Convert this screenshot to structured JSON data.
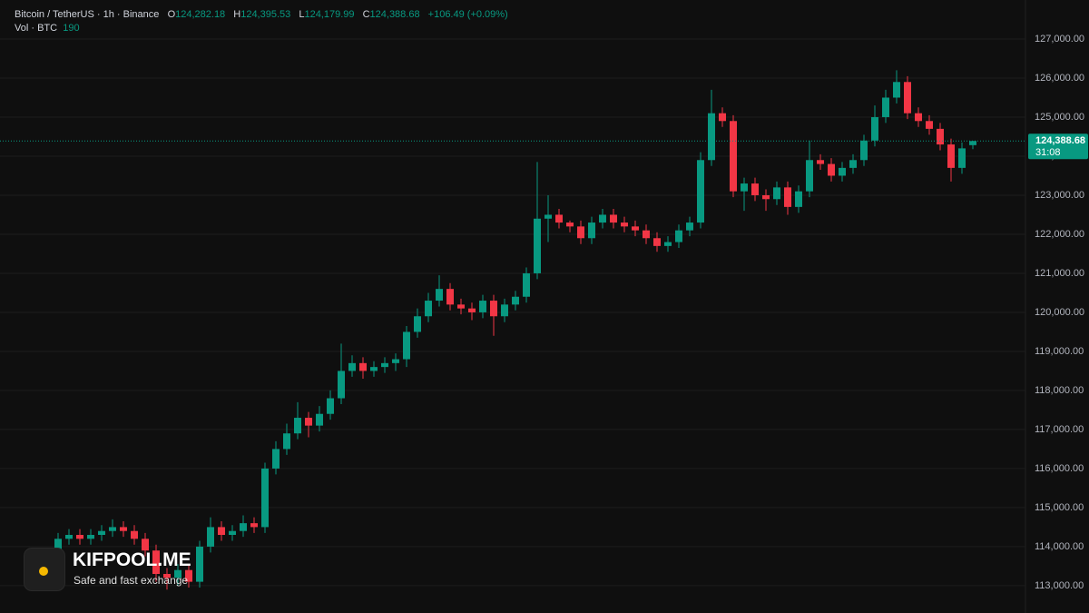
{
  "header": {
    "symbol": "Bitcoin / TetherUS · 1h · Binance",
    "ohlc": [
      {
        "label": "O",
        "value": "124,282.18"
      },
      {
        "label": "H",
        "value": "124,395.53"
      },
      {
        "label": "L",
        "value": "124,179.99"
      },
      {
        "label": "C",
        "value": "124,388.68"
      }
    ],
    "change": "+106.49 (+0.09%)",
    "volume_label": "Vol · BTC",
    "volume": "190"
  },
  "watermark": {
    "title": "KIFPOOL.ME",
    "subtitle": "Safe and fast exchange"
  },
  "chart_data": {
    "type": "candlestick",
    "up_color": "#089981",
    "down_color": "#f23645",
    "grid": true,
    "ylim": [
      112300,
      128000
    ],
    "yticks": [
      {
        "value": 113000,
        "label": "113,000.00"
      },
      {
        "value": 114000,
        "label": "114,000.00"
      },
      {
        "value": 115000,
        "label": "115,000.00"
      },
      {
        "value": 116000,
        "label": "116,000.00"
      },
      {
        "value": 117000,
        "label": "117,000.00"
      },
      {
        "value": 118000,
        "label": "118,000.00"
      },
      {
        "value": 119000,
        "label": "119,000.00"
      },
      {
        "value": 120000,
        "label": "120,000.00"
      },
      {
        "value": 121000,
        "label": "121,000.00"
      },
      {
        "value": 122000,
        "label": "122,000.00"
      },
      {
        "value": 123000,
        "label": "123,000.00"
      },
      {
        "value": 124000,
        "label": "124,000.00"
      },
      {
        "value": 125000,
        "label": "125,000.00"
      },
      {
        "value": 126000,
        "label": "126,000.00"
      },
      {
        "value": 127000,
        "label": "127,000.00"
      }
    ],
    "price_label": "124,388.68",
    "countdown": "31:08",
    "open": [
      113900,
      114200,
      114300,
      114200,
      114300,
      114400,
      114500,
      114400,
      114200,
      113900,
      113300,
      113200,
      113400,
      113100,
      114000,
      114500,
      114300,
      114400,
      114600,
      114500,
      116000,
      116500,
      116900,
      117300,
      117100,
      117400,
      117800,
      118500,
      118700,
      118500,
      118600,
      118700,
      118800,
      119500,
      119900,
      120300,
      120600,
      120200,
      120100,
      120000,
      120300,
      119900,
      120200,
      120400,
      121000,
      122400,
      122500,
      122300,
      122200,
      121900,
      122300,
      122500,
      122300,
      122200,
      122100,
      121900,
      121700,
      121800,
      122100,
      122300,
      123900,
      125100,
      124900,
      123100,
      123300,
      123000,
      122900,
      123200,
      122700,
      123100,
      123900,
      123800,
      123500,
      123700,
      123900,
      124400,
      125000,
      125500,
      125900,
      125100,
      124900,
      124700,
      124300,
      123700,
      124282.18
    ],
    "high": [
      114350,
      114450,
      114450,
      114450,
      114550,
      114700,
      114650,
      114550,
      114350,
      114050,
      113450,
      113550,
      113550,
      114150,
      114750,
      114650,
      114550,
      114800,
      114750,
      116150,
      116700,
      117150,
      117700,
      117450,
      117600,
      118000,
      119200,
      118900,
      118850,
      118750,
      118850,
      118950,
      119650,
      120100,
      120500,
      120950,
      120750,
      120350,
      120250,
      120450,
      120450,
      120350,
      120550,
      121150,
      123850,
      123000,
      122650,
      122350,
      122350,
      122450,
      122650,
      122650,
      122450,
      122350,
      122250,
      122050,
      121950,
      122250,
      122450,
      124100,
      125700,
      125250,
      125050,
      123450,
      123450,
      123150,
      123350,
      123350,
      123250,
      124400,
      124050,
      123950,
      123850,
      124050,
      124550,
      125300,
      125700,
      126200,
      126050,
      125250,
      125050,
      124850,
      124450,
      124350,
      124395.53
    ],
    "low": [
      113750,
      114050,
      114050,
      114050,
      114150,
      114250,
      114250,
      114050,
      113750,
      113100,
      112900,
      113000,
      112950,
      112950,
      113850,
      114150,
      114150,
      114250,
      114350,
      114350,
      115850,
      116350,
      116750,
      116800,
      116950,
      117250,
      117650,
      118350,
      118300,
      118350,
      118450,
      118500,
      118600,
      119350,
      119750,
      120150,
      120050,
      119950,
      119800,
      119850,
      119400,
      119750,
      120050,
      120250,
      120850,
      121800,
      122150,
      122050,
      121750,
      121750,
      122150,
      122150,
      122050,
      121950,
      121750,
      121550,
      121550,
      121650,
      121950,
      122150,
      123750,
      124750,
      122950,
      122600,
      122850,
      122600,
      122750,
      122500,
      122550,
      122950,
      123650,
      123350,
      123350,
      123550,
      123750,
      124250,
      124850,
      125350,
      124950,
      124750,
      124550,
      124150,
      123350,
      123550,
      124179.99
    ],
    "close": [
      114200,
      114300,
      114200,
      114300,
      114400,
      114500,
      114400,
      114200,
      113900,
      113300,
      113200,
      113400,
      113100,
      114000,
      114500,
      114300,
      114400,
      114600,
      114500,
      116000,
      116500,
      116900,
      117300,
      117100,
      117400,
      117800,
      118500,
      118700,
      118500,
      118600,
      118700,
      118800,
      119500,
      119900,
      120300,
      120600,
      120200,
      120100,
      120000,
      120300,
      119900,
      120200,
      120400,
      121000,
      122400,
      122500,
      122300,
      122200,
      121900,
      122300,
      122500,
      122300,
      122200,
      122100,
      121900,
      121700,
      121800,
      122100,
      122300,
      123900,
      125100,
      124900,
      123100,
      123300,
      123000,
      122900,
      123200,
      122700,
      123100,
      123900,
      123800,
      123500,
      123700,
      123900,
      124400,
      125000,
      125500,
      125900,
      125100,
      124900,
      124700,
      124300,
      123700,
      124200,
      124388.68
    ]
  }
}
